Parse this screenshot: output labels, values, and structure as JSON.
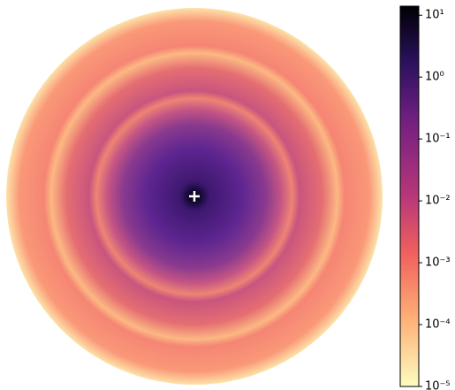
{
  "chart_data": {
    "type": "heatmap",
    "colormap": "magma",
    "colorbar_scale": "log",
    "clim": [
      1e-05,
      14
    ],
    "cticks": [
      {
        "value": 10,
        "label": "10¹"
      },
      {
        "value": 1,
        "label": "10⁰"
      },
      {
        "value": 0.1,
        "label": "10⁻¹"
      },
      {
        "value": 0.01,
        "label": "10⁻²"
      },
      {
        "value": 0.001,
        "label": "10⁻³"
      },
      {
        "value": 0.0001,
        "label": "10⁻⁴"
      },
      {
        "value": 1e-05,
        "label": "10⁻⁵"
      }
    ]
  }
}
